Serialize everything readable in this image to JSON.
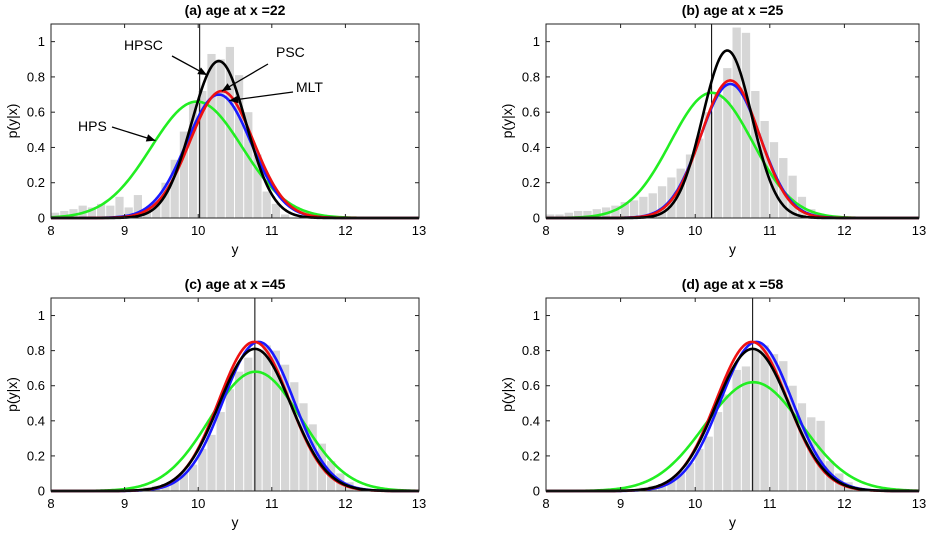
{
  "chart_data": [
    {
      "type": "line",
      "title": "(a)  age at x =22",
      "xlabel": "y",
      "ylabel": "p(y|x)",
      "xlim": [
        8,
        13
      ],
      "ylim": [
        0,
        1.1
      ],
      "xticks": [
        "8",
        "9",
        "10",
        "11",
        "12",
        "13"
      ],
      "yticks": [
        "0",
        "0.2",
        "0.4",
        "0.6",
        "0.8",
        "1"
      ],
      "vline": 10.02,
      "histogram": {
        "bin_start": 8.0,
        "bin_width": 0.125,
        "values": [
          0.03,
          0.04,
          0.05,
          0.07,
          0.06,
          0.08,
          0.07,
          0.12,
          0.06,
          0.13,
          0.05,
          0.09,
          0.2,
          0.33,
          0.49,
          0.65,
          0.72,
          0.93,
          0.9,
          0.97,
          0.81,
          0.6,
          0.36,
          0.15,
          0.08,
          0.02,
          0,
          0,
          0,
          0,
          0,
          0,
          0,
          0,
          0,
          0,
          0,
          0,
          0,
          0
        ]
      },
      "series": [
        {
          "name": "HPS",
          "color": "#22ee22",
          "mu": 9.98,
          "sd": 0.62,
          "peak": 0.66
        },
        {
          "name": "MLT",
          "color": "#1a1aff",
          "mu": 10.28,
          "sd": 0.44,
          "peak": 0.7
        },
        {
          "name": "PSC",
          "color": "#ee1111",
          "mu": 10.32,
          "sd": 0.43,
          "peak": 0.72
        },
        {
          "name": "HPSC",
          "color": "#000000",
          "mu": 10.28,
          "sd": 0.37,
          "peak": 0.89
        }
      ],
      "annotations": [
        {
          "label": "HPSC",
          "target_series": "HPSC",
          "target_x": 10.12
        },
        {
          "label": "PSC",
          "target_series": "PSC",
          "target_x": 10.32
        },
        {
          "label": "MLT",
          "target_series": "MLT",
          "target_x": 10.42
        },
        {
          "label": "HPS",
          "target_series": "HPS",
          "target_x": 9.42
        }
      ]
    },
    {
      "type": "line",
      "title": "(b)  age at x =25",
      "xlabel": "y",
      "ylabel": "p(y|x)",
      "xlim": [
        8,
        13
      ],
      "ylim": [
        0,
        1.1
      ],
      "xticks": [
        "8",
        "9",
        "10",
        "11",
        "12",
        "13"
      ],
      "yticks": [
        "0",
        "0.2",
        "0.4",
        "0.6",
        "0.8",
        "1"
      ],
      "vline": 10.22,
      "histogram": {
        "bin_start": 8.0,
        "bin_width": 0.125,
        "values": [
          0.02,
          0.02,
          0.03,
          0.04,
          0.04,
          0.05,
          0.06,
          0.07,
          0.09,
          0.1,
          0.12,
          0.14,
          0.18,
          0.23,
          0.28,
          0.36,
          0.45,
          0.6,
          0.7,
          0.85,
          1.08,
          1.05,
          0.72,
          0.55,
          0.43,
          0.34,
          0.24,
          0.12,
          0.05,
          0.02,
          0,
          0,
          0,
          0,
          0,
          0,
          0,
          0,
          0,
          0
        ]
      },
      "series": [
        {
          "name": "HPS",
          "color": "#22ee22",
          "mu": 10.22,
          "sd": 0.55,
          "peak": 0.71
        },
        {
          "name": "MLT",
          "color": "#1a1aff",
          "mu": 10.47,
          "sd": 0.4,
          "peak": 0.76
        },
        {
          "name": "PSC",
          "color": "#ee1111",
          "mu": 10.47,
          "sd": 0.39,
          "peak": 0.78
        },
        {
          "name": "HPSC",
          "color": "#000000",
          "mu": 10.43,
          "sd": 0.33,
          "peak": 0.95
        }
      ],
      "annotations": []
    },
    {
      "type": "line",
      "title": "(c)  age at x =45",
      "xlabel": "y",
      "ylabel": "p(y|x)",
      "xlim": [
        8,
        13
      ],
      "ylim": [
        0,
        1.1
      ],
      "xticks": [
        "8",
        "9",
        "10",
        "11",
        "12",
        "13"
      ],
      "yticks": [
        "0",
        "0.2",
        "0.4",
        "0.6",
        "0.8",
        "1"
      ],
      "vline": 10.77,
      "histogram": {
        "bin_start": 8.0,
        "bin_width": 0.125,
        "values": [
          0,
          0,
          0,
          0,
          0,
          0,
          0,
          0,
          0.01,
          0.01,
          0.02,
          0.03,
          0.04,
          0.06,
          0.1,
          0.15,
          0.24,
          0.32,
          0.45,
          0.58,
          0.68,
          0.76,
          0.8,
          0.83,
          0.8,
          0.72,
          0.62,
          0.5,
          0.38,
          0.27,
          0.17,
          0.1,
          0.05,
          0.02,
          0.01,
          0,
          0,
          0,
          0,
          0
        ]
      },
      "series": [
        {
          "name": "HPS",
          "color": "#22ee22",
          "mu": 10.78,
          "sd": 0.62,
          "peak": 0.68
        },
        {
          "name": "MLT",
          "color": "#1a1aff",
          "mu": 10.82,
          "sd": 0.48,
          "peak": 0.85
        },
        {
          "name": "PSC",
          "color": "#ee1111",
          "mu": 10.76,
          "sd": 0.48,
          "peak": 0.85
        },
        {
          "name": "HPSC",
          "color": "#000000",
          "mu": 10.77,
          "sd": 0.49,
          "peak": 0.81
        }
      ],
      "annotations": []
    },
    {
      "type": "line",
      "title": "(d)  age at x =58",
      "xlabel": "y",
      "ylabel": "p(y|x)",
      "xlim": [
        8,
        13
      ],
      "ylim": [
        0,
        1.1
      ],
      "xticks": [
        "8",
        "9",
        "10",
        "11",
        "12",
        "13"
      ],
      "yticks": [
        "0",
        "0.2",
        "0.4",
        "0.6",
        "0.8",
        "1"
      ],
      "vline": 10.77,
      "histogram": {
        "bin_start": 8.0,
        "bin_width": 0.125,
        "values": [
          0,
          0,
          0,
          0,
          0,
          0,
          0,
          0,
          0.01,
          0.01,
          0.02,
          0.03,
          0.04,
          0.06,
          0.1,
          0.16,
          0.24,
          0.31,
          0.45,
          0.55,
          0.69,
          0.71,
          0.8,
          0.83,
          0.78,
          0.74,
          0.6,
          0.5,
          0.42,
          0.4,
          0.17,
          0.1,
          0.05,
          0.02,
          0.01,
          0,
          0,
          0,
          0,
          0
        ]
      },
      "series": [
        {
          "name": "HPS",
          "color": "#22ee22",
          "mu": 10.78,
          "sd": 0.65,
          "peak": 0.62
        },
        {
          "name": "MLT",
          "color": "#1a1aff",
          "mu": 10.82,
          "sd": 0.48,
          "peak": 0.85
        },
        {
          "name": "PSC",
          "color": "#ee1111",
          "mu": 10.76,
          "sd": 0.48,
          "peak": 0.85
        },
        {
          "name": "HPSC",
          "color": "#000000",
          "mu": 10.77,
          "sd": 0.49,
          "peak": 0.81
        }
      ],
      "annotations": []
    }
  ]
}
